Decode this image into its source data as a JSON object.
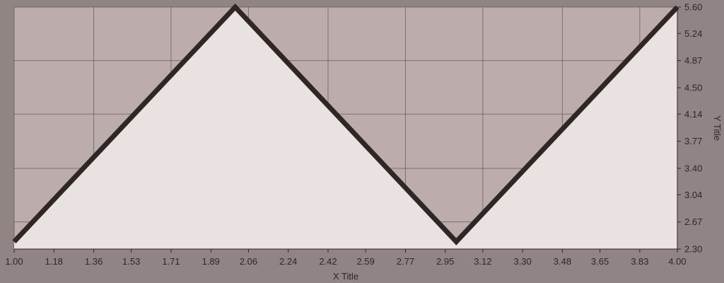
{
  "colors": {
    "background": "#918484",
    "plot_bg": "#bcacac",
    "fill": "#eae1e1",
    "line": "#2f2626",
    "grid": "#4a3d3d",
    "text": "#2f2626"
  },
  "chart_data": {
    "type": "area",
    "xlabel": "X Title",
    "ylabel": "Y Title",
    "xlim": [
      1.0,
      4.0
    ],
    "ylim": [
      2.3,
      5.6
    ],
    "x_ticks": [
      "1.00",
      "1.18",
      "1.36",
      "1.53",
      "1.71",
      "1.89",
      "2.06",
      "2.24",
      "2.42",
      "2.59",
      "2.77",
      "2.95",
      "3.12",
      "3.30",
      "3.48",
      "3.65",
      "3.83",
      "4.00"
    ],
    "y_ticks": [
      "2.30",
      "2.67",
      "3.04",
      "3.40",
      "3.77",
      "4.14",
      "4.50",
      "4.87",
      "5.24",
      "5.60"
    ],
    "grid": true,
    "y_axis_position": "right",
    "series": [
      {
        "x": [
          1.0,
          2.0,
          3.0,
          4.0
        ],
        "y": [
          2.4,
          5.6,
          2.4,
          5.6
        ]
      }
    ]
  }
}
